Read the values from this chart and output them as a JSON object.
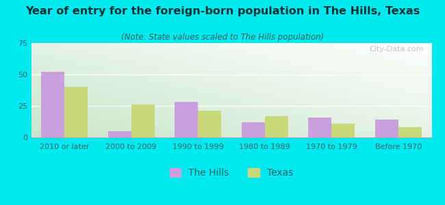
{
  "title": "Year of entry for the foreign-born population in The Hills, Texas",
  "subtitle": "(Note: State values scaled to The Hills population)",
  "categories": [
    "2010 or later",
    "2000 to 2009",
    "1990 to 1999",
    "1980 to 1989",
    "1970 to 1979",
    "Before 1970"
  ],
  "the_hills": [
    52,
    5,
    28,
    12,
    16,
    14
  ],
  "texas": [
    40,
    26,
    21,
    17,
    11,
    8
  ],
  "hills_color": "#c9a0dc",
  "texas_color": "#c8d87a",
  "ylim": [
    0,
    75
  ],
  "yticks": [
    0,
    25,
    50,
    75
  ],
  "background_color": "#00e8f0",
  "watermark": "City-Data.com",
  "bar_width": 0.35,
  "title_fontsize": 11.5,
  "subtitle_fontsize": 8.5,
  "legend_fontsize": 10,
  "tick_fontsize": 8
}
